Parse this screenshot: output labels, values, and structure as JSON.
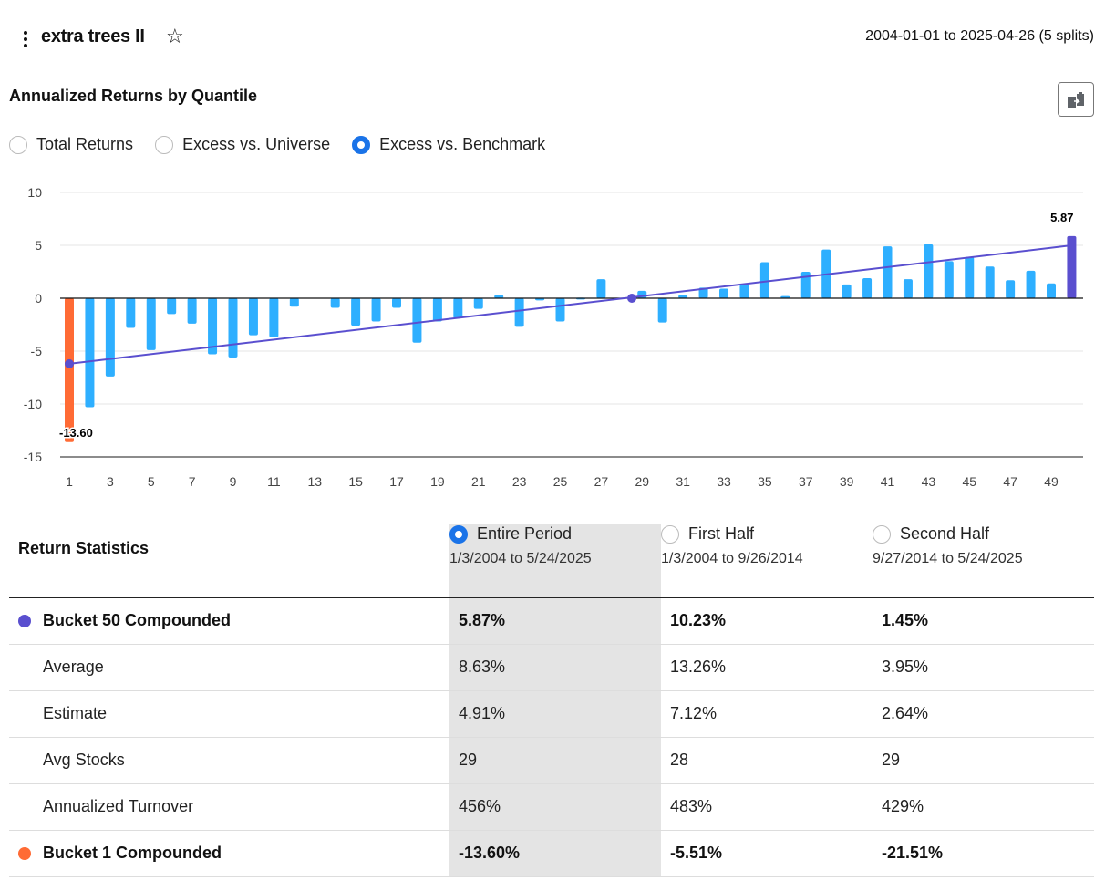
{
  "header": {
    "title": "extra trees II",
    "star_icon": "☆",
    "date_range": "2004-01-01 to 2025-04-26 (5 splits)"
  },
  "section": {
    "title": "Annualized Returns by Quantile",
    "export_icon": "export-icon"
  },
  "return_modes": [
    {
      "label": "Total Returns",
      "checked": false
    },
    {
      "label": "Excess vs. Universe",
      "checked": false
    },
    {
      "label": "Excess vs. Benchmark",
      "checked": true
    }
  ],
  "colors": {
    "bar": "#2eafff",
    "bucket_low": "#ff6b35",
    "bucket_high": "#5a4fcf",
    "trend": "#5a4fcf",
    "radio_checked": "#1a73e8"
  },
  "chart_data": {
    "type": "bar",
    "title": "Annualized Returns by Quantile",
    "xlabel": "",
    "ylabel": "",
    "x": [
      1,
      2,
      3,
      4,
      5,
      6,
      7,
      8,
      9,
      10,
      11,
      12,
      13,
      14,
      15,
      16,
      17,
      18,
      19,
      20,
      21,
      22,
      23,
      24,
      25,
      26,
      27,
      28,
      29,
      30,
      31,
      32,
      33,
      34,
      35,
      36,
      37,
      38,
      39,
      40,
      41,
      42,
      43,
      44,
      45,
      46,
      47,
      48,
      49,
      50
    ],
    "values": [
      -13.6,
      -10.3,
      -7.4,
      -2.8,
      -4.9,
      -1.5,
      -2.4,
      -5.3,
      -5.6,
      -3.5,
      -3.7,
      -0.8,
      0.0,
      -0.9,
      -2.6,
      -2.2,
      -0.9,
      -4.2,
      -2.2,
      -1.9,
      -1.0,
      0.3,
      -2.7,
      -0.2,
      -2.2,
      0.05,
      1.8,
      0.0,
      0.7,
      -2.3,
      0.3,
      1.0,
      0.9,
      1.3,
      3.4,
      0.2,
      2.5,
      4.6,
      1.3,
      1.9,
      4.9,
      1.8,
      5.1,
      3.5,
      3.9,
      3.0,
      1.7,
      2.6,
      1.4,
      5.87
    ],
    "highlight": {
      "first": {
        "bucket": 1,
        "label": "-13.60"
      },
      "last": {
        "bucket": 50,
        "label": "5.87"
      }
    },
    "trendline": {
      "start": [
        1,
        -6.2
      ],
      "end": [
        50,
        5.0
      ],
      "marker_points": [
        [
          1,
          -6.2
        ],
        [
          28.5,
          0.0
        ]
      ]
    },
    "ylim": [
      -15,
      10
    ],
    "yticks": [
      10,
      5,
      0,
      -5,
      -10,
      -15
    ],
    "xticks": [
      1,
      3,
      5,
      7,
      9,
      11,
      13,
      15,
      17,
      19,
      21,
      23,
      25,
      27,
      29,
      31,
      33,
      35,
      37,
      39,
      41,
      43,
      45,
      47,
      49
    ],
    "grid": true,
    "legend": "none"
  },
  "stats": {
    "title": "Return Statistics",
    "periods": [
      {
        "label": "Entire Period",
        "range": "1/3/2004 to 5/24/2025",
        "checked": true
      },
      {
        "label": "First Half",
        "range": "1/3/2004 to 9/26/2014",
        "checked": false
      },
      {
        "label": "Second Half",
        "range": "9/27/2014 to 5/24/2025",
        "checked": false
      }
    ],
    "rows": [
      {
        "label": "Bucket 50 Compounded",
        "bold": true,
        "dot": "high",
        "values": [
          "5.87%",
          "10.23%",
          "1.45%"
        ]
      },
      {
        "label": "Average",
        "bold": false,
        "values": [
          "8.63%",
          "13.26%",
          "3.95%"
        ]
      },
      {
        "label": "Estimate",
        "bold": false,
        "values": [
          "4.91%",
          "7.12%",
          "2.64%"
        ]
      },
      {
        "label": "Avg Stocks",
        "bold": false,
        "values": [
          "29",
          "28",
          "29"
        ]
      },
      {
        "label": "Annualized Turnover",
        "bold": false,
        "values": [
          "456%",
          "483%",
          "429%"
        ]
      },
      {
        "label": "Bucket 1 Compounded",
        "bold": true,
        "dot": "low",
        "values": [
          "-13.60%",
          "-5.51%",
          "-21.51%"
        ]
      }
    ]
  }
}
